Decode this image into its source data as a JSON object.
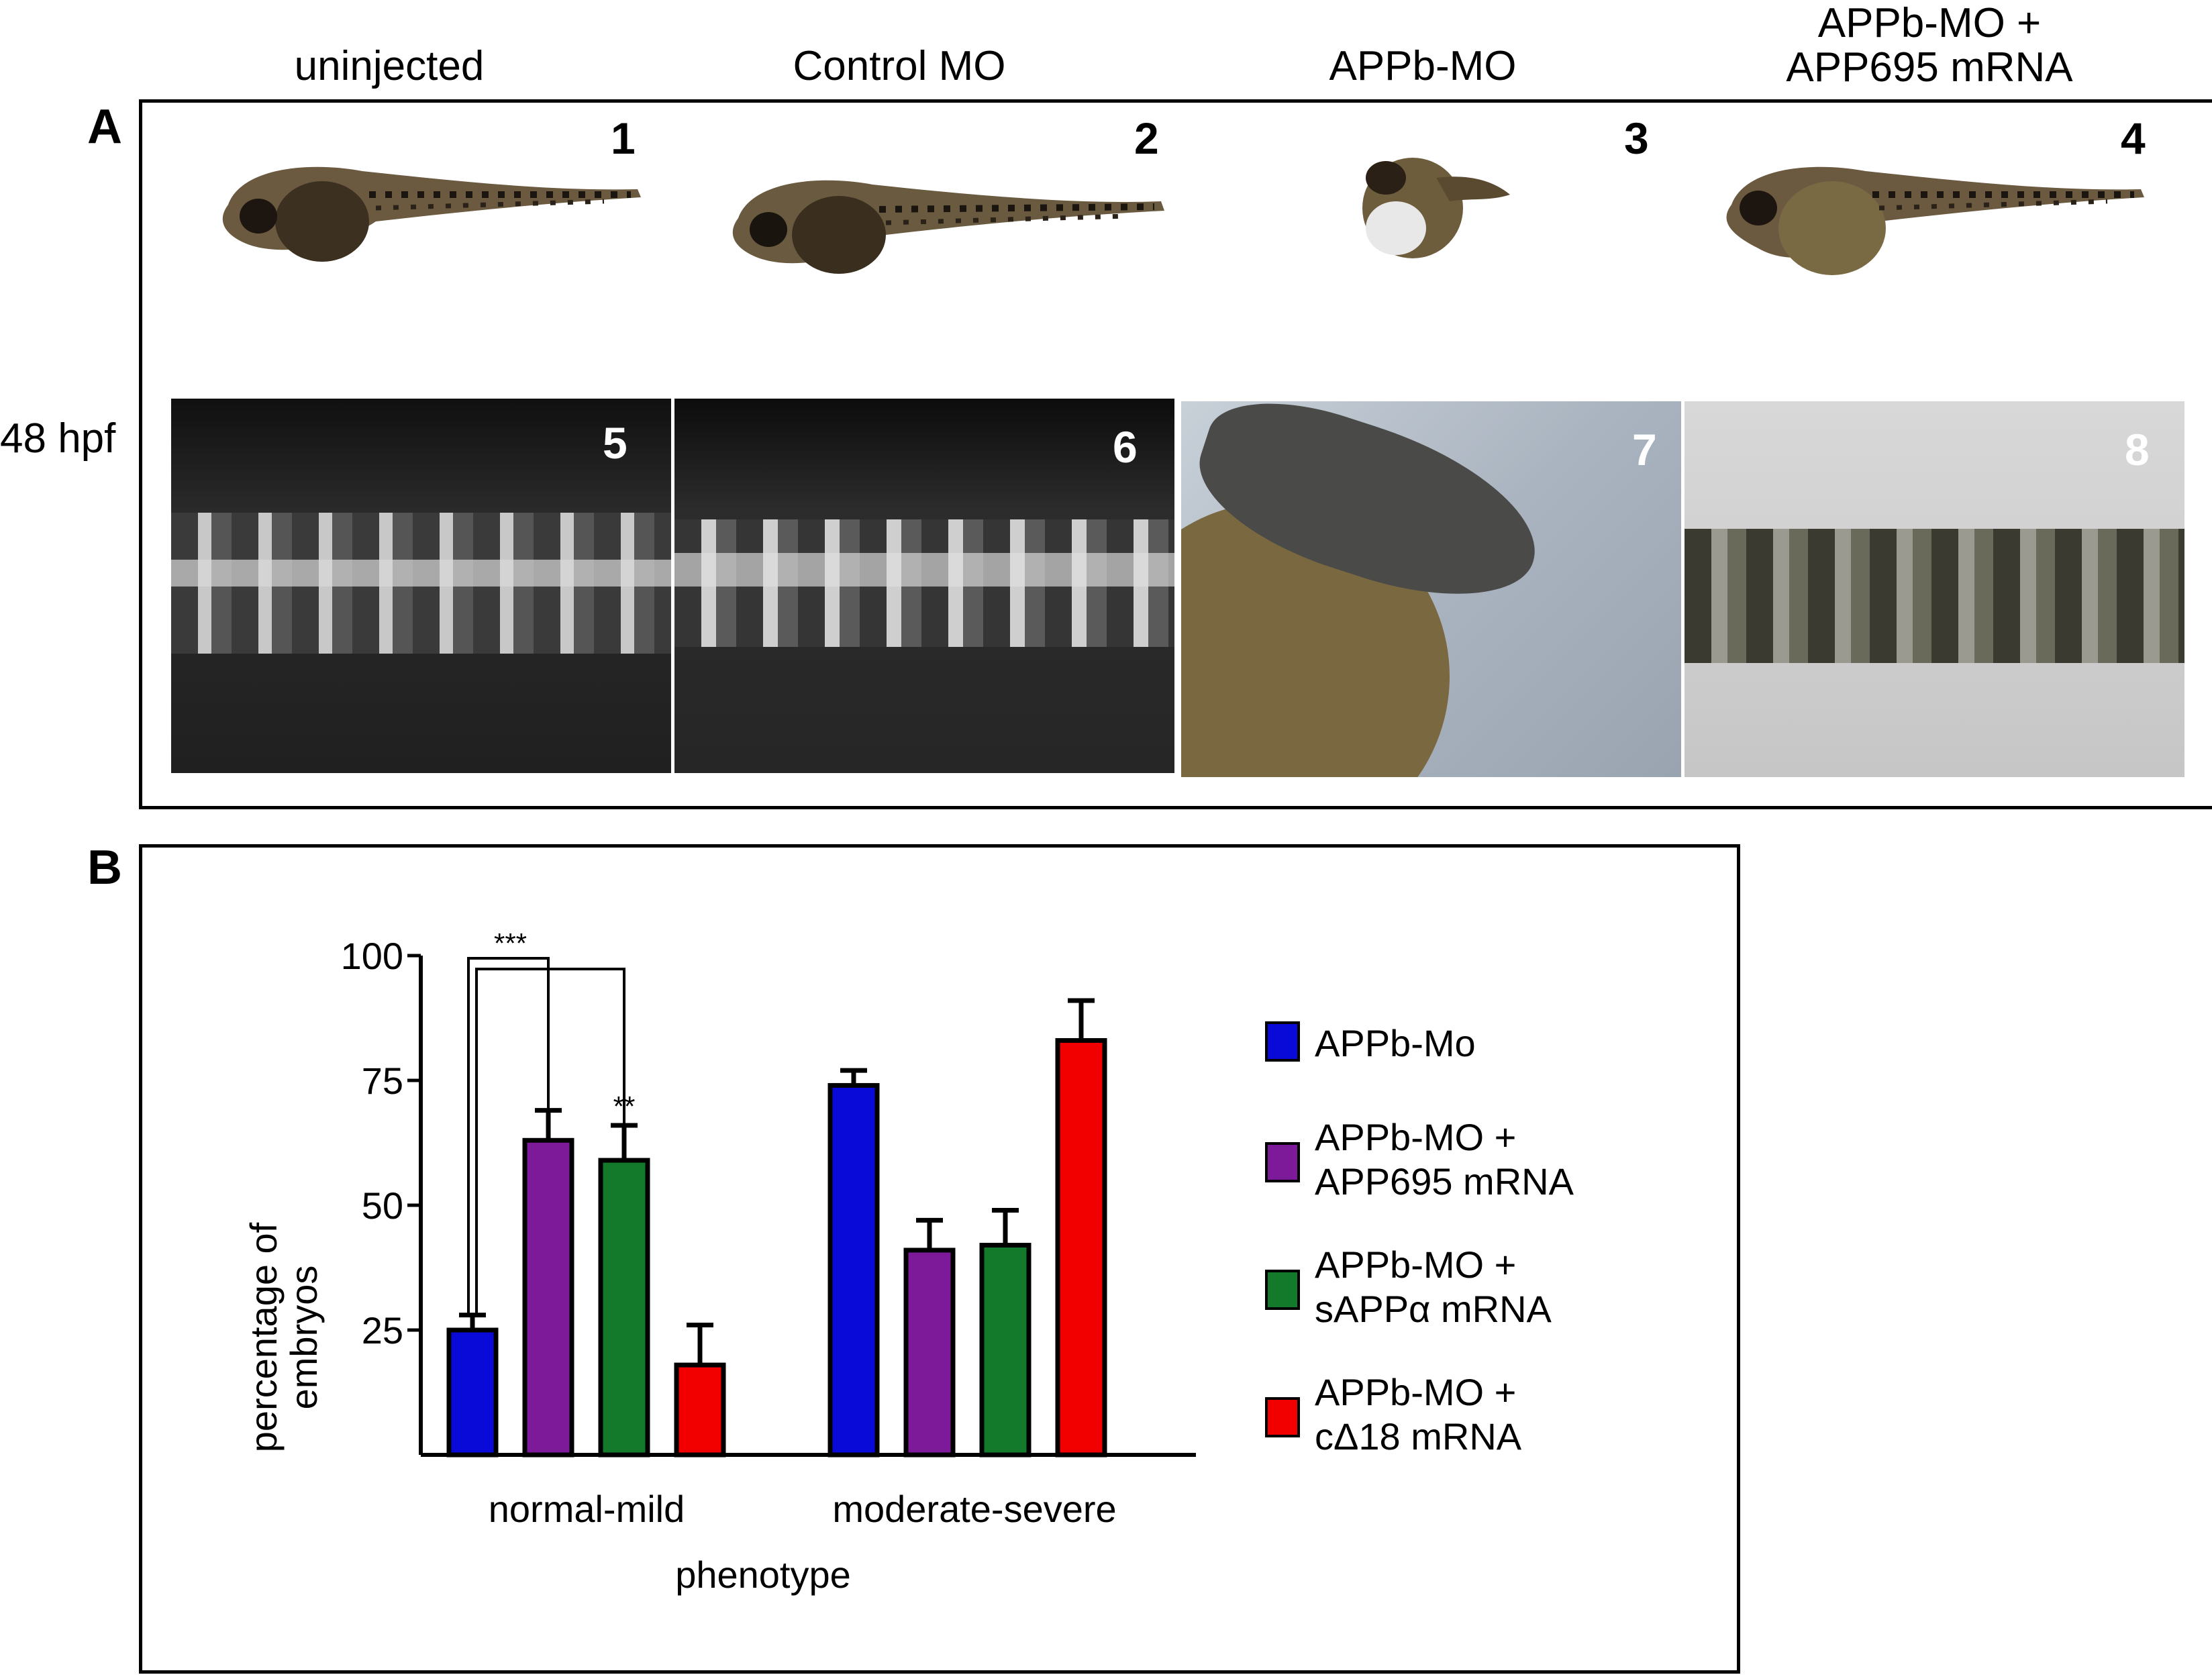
{
  "columns": [
    "uninjected",
    "Control MO",
    "APPb-MO",
    "APPb-MO +\nAPP695 mRNA"
  ],
  "column_title_4_line1": "APPb-MO +",
  "column_title_4_line2": "APP695 mRNA",
  "panel_a_label": "A",
  "panel_b_label": "B",
  "row_label": "48 hpf",
  "panel_numbers": [
    "1",
    "2",
    "3",
    "4",
    "5",
    "6",
    "7",
    "8"
  ],
  "colors": {
    "appb_mo": "#0a0ad8",
    "app695": "#7d1a9a",
    "sappa": "#127a2a",
    "cd18": "#f20000"
  },
  "chart_data": {
    "type": "bar",
    "categories": [
      "normal-mild",
      "moderate-severe"
    ],
    "xlabel": "phenotype",
    "ylabel": "percentage of embryos",
    "ylabel_line1": "percentage of",
    "ylabel_line2": "embryos",
    "ylim": [
      0,
      100
    ],
    "yticks": [
      "25",
      "50",
      "75",
      "100"
    ],
    "series": [
      {
        "name": "APPb-Mo",
        "name_line1": "APPb-Mo",
        "name_line2": "",
        "values": [
          25,
          74
        ],
        "errors": [
          3,
          3
        ],
        "color": "#0a0ad8"
      },
      {
        "name": "APPb-MO + APP695 mRNA",
        "name_line1": "APPb-MO +",
        "name_line2": "APP695 mRNA",
        "values": [
          63,
          41
        ],
        "errors": [
          6,
          6
        ],
        "color": "#7d1a9a"
      },
      {
        "name": "APPb-MO + sAPPα mRNA",
        "name_line1": "APPb-MO +",
        "name_line2": "sAPPα mRNA",
        "values": [
          59,
          42
        ],
        "errors": [
          7,
          7
        ],
        "color": "#127a2a"
      },
      {
        "name": "APPb-MO + cΔ18 mRNA",
        "name_line1": "APPb-MO +",
        "name_line2": "cΔ18 mRNA",
        "values": [
          18,
          83
        ],
        "errors": [
          8,
          8
        ],
        "color": "#f20000"
      }
    ],
    "annotations": [
      "***",
      "**"
    ],
    "legend_position": "right"
  }
}
